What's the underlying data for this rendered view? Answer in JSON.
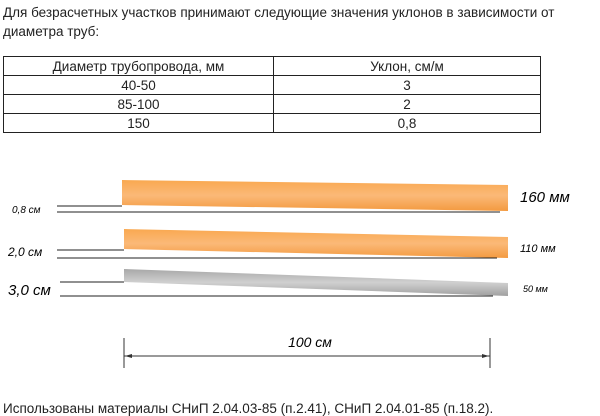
{
  "intro": "Для безрасчетных участков принимают следующие значения уклонов в зависимости от диаметра труб:",
  "table": {
    "headers": [
      "Диаметр трубопровода, мм",
      "Уклон, см/м"
    ],
    "rows": [
      [
        "40-50",
        "3"
      ],
      [
        "85-100",
        "2"
      ],
      [
        "150",
        "0,8"
      ]
    ]
  },
  "diagram": {
    "pipes": [
      {
        "slope_label": "0,8 см",
        "diameter_label": "160 мм",
        "color": "#f7a24e"
      },
      {
        "slope_label": "2,0 см",
        "diameter_label": "110 мм",
        "color": "#f7a24e"
      },
      {
        "slope_label": "3,0 см",
        "diameter_label": "50 мм",
        "color": "#b3b3b3"
      }
    ],
    "length_label": "100 см"
  },
  "footer": "Использованы материалы СНиП 2.04.03-85 (п.2.41), СНиП 2.04.01-85 (п.18.2)."
}
